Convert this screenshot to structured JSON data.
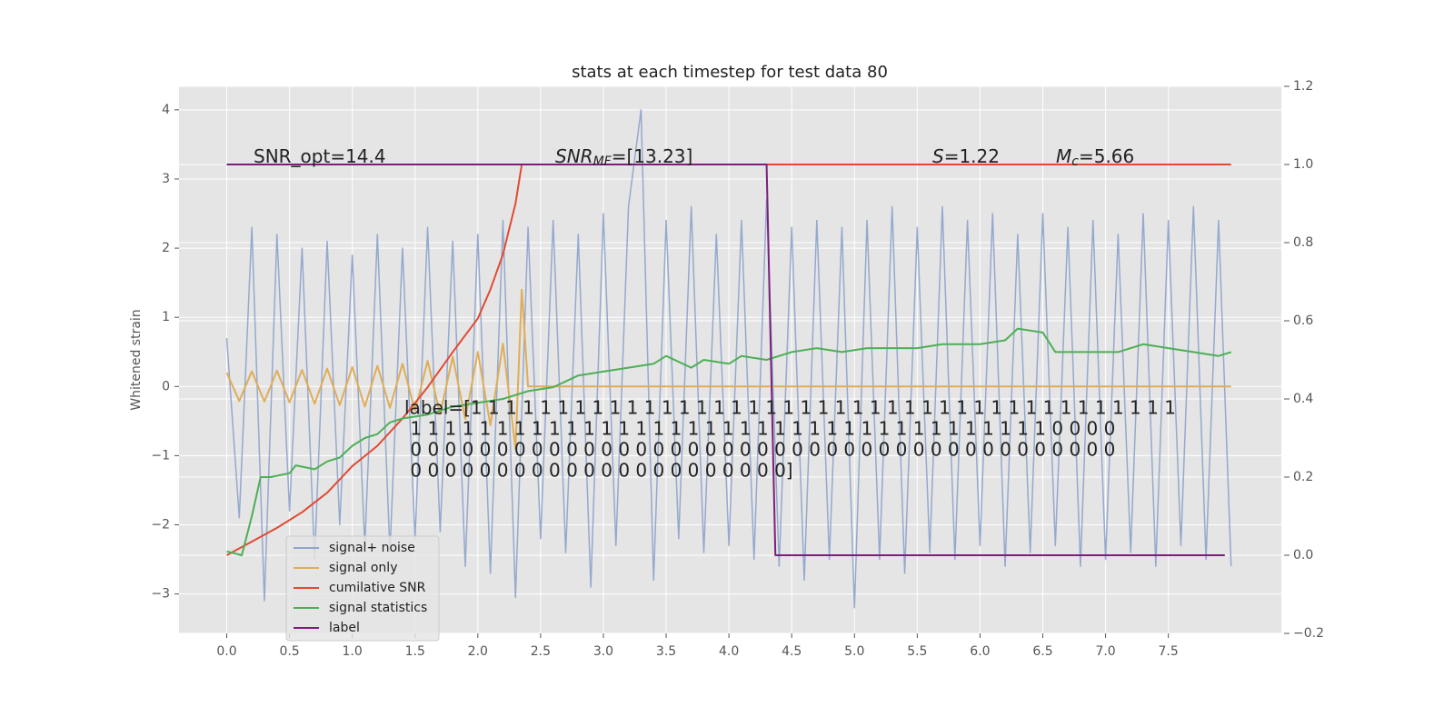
{
  "chart_data": {
    "type": "line",
    "title": "stats at each timestep for test data 80",
    "ylabel": "Whitened strain",
    "xlim": [
      -0.38,
      8.4
    ],
    "ylim": [
      -3.57,
      4.34
    ],
    "y2lim": [
      -0.2,
      1.2
    ],
    "xticks": [
      {
        "value": 0,
        "label": "0.0"
      },
      0.5,
      {
        "value": 1,
        "label": "1.0"
      },
      1.5,
      {
        "value": 2,
        "label": "2.0"
      },
      2.5,
      {
        "value": 3,
        "label": "3.0"
      },
      3.5,
      {
        "value": 4,
        "label": "4.0"
      },
      4.5,
      {
        "value": 5,
        "label": "5.0"
      },
      5.5,
      {
        "value": 6,
        "label": "6.0"
      },
      6.5,
      {
        "value": 7,
        "label": "7.0"
      },
      7.5
    ],
    "yticks": [
      {
        "value": -3,
        "label": "−3"
      },
      {
        "value": -2,
        "label": "−2"
      },
      {
        "value": -1,
        "label": "−1"
      },
      0,
      1,
      2,
      3,
      4
    ],
    "y2ticks": [
      {
        "value": -0.2,
        "label": "−0.2"
      },
      {
        "value": 0,
        "label": "0.0"
      },
      0.2,
      0.4,
      0.6,
      0.8,
      {
        "value": 1,
        "label": "1.0"
      },
      1.2
    ],
    "grid": true,
    "legend": "lower left",
    "series": [
      {
        "name": "signal+ noise",
        "color": "#8fa5cc",
        "x": [
          0,
          0.1,
          0.2,
          0.3,
          0.4,
          0.5,
          0.6,
          0.7,
          0.8,
          0.9,
          1.0,
          1.1,
          1.2,
          1.3,
          1.4,
          1.5,
          1.6,
          1.7,
          1.8,
          1.9,
          2.0,
          2.1,
          2.2,
          2.3,
          2.4,
          2.5,
          2.6,
          2.7,
          2.8,
          2.9,
          3.0,
          3.1,
          3.2,
          3.3,
          3.4,
          3.5,
          3.6,
          3.7,
          3.8,
          3.9,
          4.0,
          4.1,
          4.2,
          4.3,
          4.4,
          4.5,
          4.6,
          4.7,
          4.8,
          4.9,
          5.0,
          5.1,
          5.2,
          5.3,
          5.4,
          5.5,
          5.6,
          5.7,
          5.8,
          5.9,
          6.0,
          6.1,
          6.2,
          6.3,
          6.4,
          6.5,
          6.6,
          6.7,
          6.8,
          6.9,
          7.0,
          7.1,
          7.2,
          7.3,
          7.4,
          7.5,
          7.6,
          7.7,
          7.8,
          7.9,
          8.0
        ],
        "values": [
          0.7,
          -1.9,
          2.3,
          -3.1,
          2.2,
          -1.8,
          2.0,
          -2.5,
          2.1,
          -2.0,
          1.9,
          -2.3,
          2.2,
          -2.4,
          2.0,
          -2.2,
          2.3,
          -2.1,
          2.1,
          -2.6,
          2.2,
          -2.7,
          2.4,
          -3.05,
          2.3,
          -2.2,
          2.4,
          -2.4,
          2.2,
          -2.9,
          2.5,
          -2.3,
          2.6,
          4.0,
          -2.8,
          2.4,
          -2.2,
          2.6,
          -2.4,
          2.2,
          -2.3,
          2.4,
          -2.5,
          2.7,
          -2.6,
          2.3,
          -2.8,
          2.4,
          -2.5,
          2.3,
          -3.2,
          2.4,
          -2.5,
          2.6,
          -2.7,
          2.3,
          -2.4,
          2.6,
          -2.5,
          2.4,
          -2.3,
          2.5,
          -2.6,
          2.2,
          -2.4,
          2.5,
          -2.3,
          2.3,
          -2.6,
          2.4,
          -2.5,
          2.2,
          -2.4,
          2.5,
          -2.6,
          2.4,
          -2.3,
          2.6,
          -2.5,
          2.4,
          -2.6
        ]
      },
      {
        "name": "signal only",
        "color": "#e0ad58",
        "x": [
          0,
          0.1,
          0.2,
          0.3,
          0.4,
          0.5,
          0.6,
          0.7,
          0.8,
          0.9,
          1.0,
          1.1,
          1.2,
          1.3,
          1.4,
          1.5,
          1.6,
          1.7,
          1.8,
          1.9,
          2.0,
          2.1,
          2.2,
          2.3,
          2.35,
          2.4,
          8.0
        ],
        "values": [
          0.2,
          -0.21,
          0.22,
          -0.22,
          0.23,
          -0.23,
          0.24,
          -0.25,
          0.26,
          -0.27,
          0.28,
          -0.29,
          0.3,
          -0.31,
          0.33,
          -0.35,
          0.37,
          -0.4,
          0.43,
          -0.47,
          0.5,
          -0.56,
          0.62,
          -0.9,
          1.4,
          0,
          0
        ]
      },
      {
        "name": "cumilative SNR",
        "color": "#e24a33",
        "axis": "y2",
        "x": [
          0,
          0.2,
          0.4,
          0.6,
          0.8,
          1.0,
          1.2,
          1.4,
          1.6,
          1.8,
          2.0,
          2.1,
          2.2,
          2.3,
          2.35,
          8.0
        ],
        "values": [
          0,
          0.035,
          0.07,
          0.11,
          0.16,
          0.228,
          0.28,
          0.35,
          0.43,
          0.52,
          0.606,
          0.68,
          0.77,
          0.9,
          1.0,
          1.0
        ]
      },
      {
        "name": "signal statistics",
        "color": "#4daf56",
        "axis": "y2",
        "x": [
          0,
          0.12,
          0.2,
          0.27,
          0.35,
          0.5,
          0.55,
          0.7,
          0.8,
          0.9,
          1.0,
          1.1,
          1.2,
          1.3,
          1.4,
          1.6,
          1.8,
          2.0,
          2.2,
          2.4,
          2.6,
          2.8,
          3.0,
          3.2,
          3.4,
          3.5,
          3.7,
          3.8,
          4.0,
          4.1,
          4.3,
          4.5,
          4.7,
          4.9,
          5.1,
          5.5,
          5.7,
          6.0,
          6.2,
          6.3,
          6.5,
          6.6,
          6.8,
          7.1,
          7.3,
          7.5,
          7.7,
          7.9,
          8.0
        ],
        "values": [
          0.01,
          0.0,
          0.1,
          0.2,
          0.2,
          0.21,
          0.23,
          0.22,
          0.24,
          0.25,
          0.28,
          0.3,
          0.31,
          0.34,
          0.35,
          0.36,
          0.38,
          0.39,
          0.4,
          0.42,
          0.43,
          0.46,
          0.47,
          0.48,
          0.49,
          0.51,
          0.48,
          0.5,
          0.49,
          0.51,
          0.5,
          0.52,
          0.53,
          0.52,
          0.53,
          0.53,
          0.54,
          0.54,
          0.55,
          0.58,
          0.57,
          0.52,
          0.52,
          0.52,
          0.54,
          0.53,
          0.52,
          0.51,
          0.52
        ]
      },
      {
        "name": "label",
        "color": "#7b1f7b",
        "axis": "y2",
        "x": [
          0,
          4.3,
          4.37,
          7.95
        ],
        "values": [
          1,
          1,
          0,
          0
        ]
      }
    ],
    "annotations": [
      {
        "base": "SNR_opt=14.4"
      },
      {
        "base": "SNR",
        "sub": "MF",
        "rest": "=[13.23]"
      },
      {
        "base": "S",
        "rest": "=1.22"
      },
      {
        "base": "M",
        "sub": "c",
        "rest": "=5.66"
      }
    ],
    "label_text": [
      "label=[1 1 1 1 1 1 1 1 1 1 1 1 1 1 1 1 1 1 1 1 1 1 1 1 1 1 1 1 1 1 1 1 1 1 1 1 1 1 1 1 1",
      " 1 1 1 1 1 1 1 1 1 1 1 1 1 1 1 1 1 1 1 1 1 1 1 1 1 1 1 1 1 1 1 1 1 1 1 1 1 0 0 0 0",
      " 0 0 0 0 0 0 0 0 0 0 0 0 0 0 0 0 0 0 0 0 0 0 0 0 0 0 0 0 0 0 0 0 0 0 0 0 0 0 0 0 0",
      " 0 0 0 0 0 0 0 0 0 0 0 0 0 0 0 0 0 0 0 0 0 0]"
    ]
  }
}
